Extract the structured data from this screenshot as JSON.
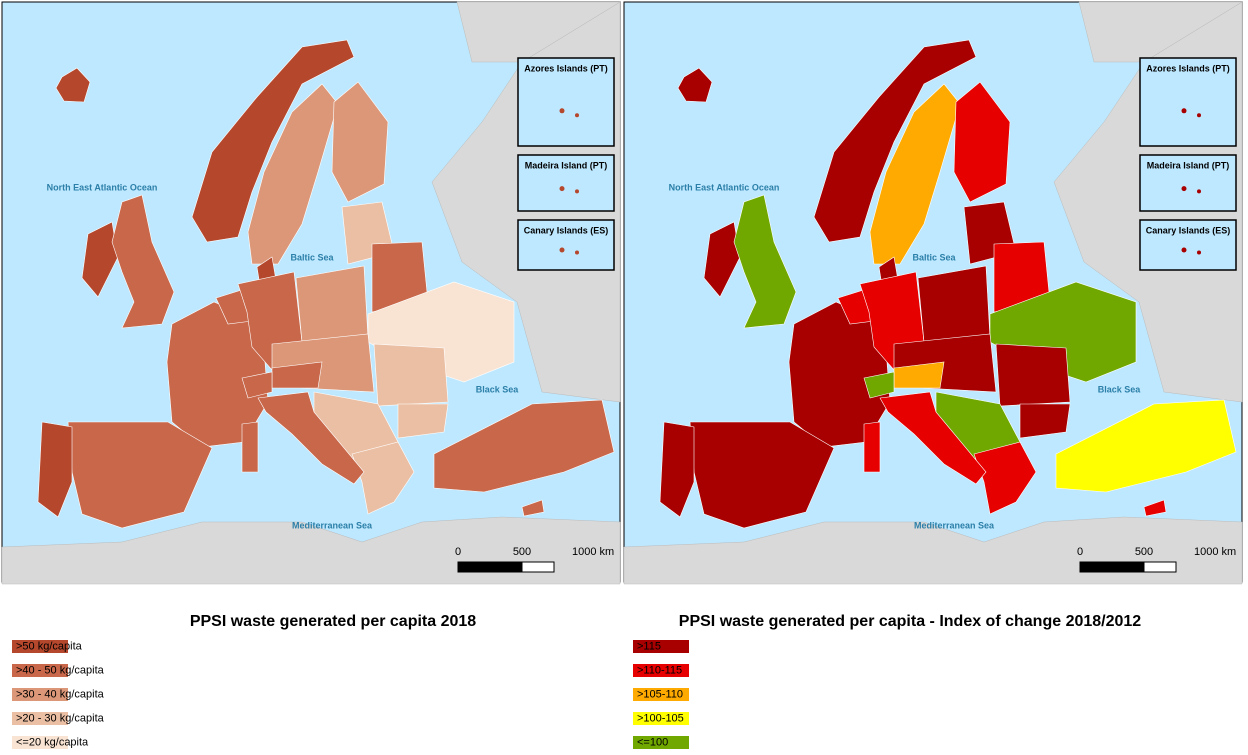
{
  "maps": [
    {
      "sea_labels": [
        "North East Atlantic Ocean",
        "Baltic Sea",
        "Black Sea",
        "Mediterranean Sea"
      ],
      "insets": [
        "Azores Islands (PT)",
        "Madeira Island (PT)",
        "Canary Islands (ES)"
      ],
      "scale": [
        "0",
        "500",
        "1000 km"
      ],
      "legend": {
        "title": "PPSI waste generated per capita 2018",
        "entries": [
          {
            "label": ">50 kg/capita",
            "color": "#b5472c"
          },
          {
            "label": ">40 - 50 kg/capita",
            "color": "#c8674a"
          },
          {
            "label": ">30 - 40 kg/capita",
            "color": "#dc9778"
          },
          {
            "label": ">20 - 30 kg/capita",
            "color": "#ebbfa4"
          },
          {
            "label": "<=20 kg/capita",
            "color": "#f9e4d4"
          }
        ]
      }
    },
    {
      "sea_labels": [
        "North East Atlantic Ocean",
        "Baltic Sea",
        "Black Sea",
        "Mediterranean Sea"
      ],
      "insets": [
        "Azores Islands (PT)",
        "Madeira Island (PT)",
        "Canary Islands (ES)"
      ],
      "scale": [
        "0",
        "500",
        "1000 km"
      ],
      "legend": {
        "title": "PPSI waste generated per capita - Index of change 2018/2012",
        "entries": [
          {
            "label": ">115",
            "color": "#a80000"
          },
          {
            "label": ">110-115",
            "color": "#e60000"
          },
          {
            "label": ">105-110",
            "color": "#ffaa00"
          },
          {
            "label": ">100-105",
            "color": "#ffff00"
          },
          {
            "label": "<=100",
            "color": "#70a800"
          }
        ]
      }
    }
  ]
}
